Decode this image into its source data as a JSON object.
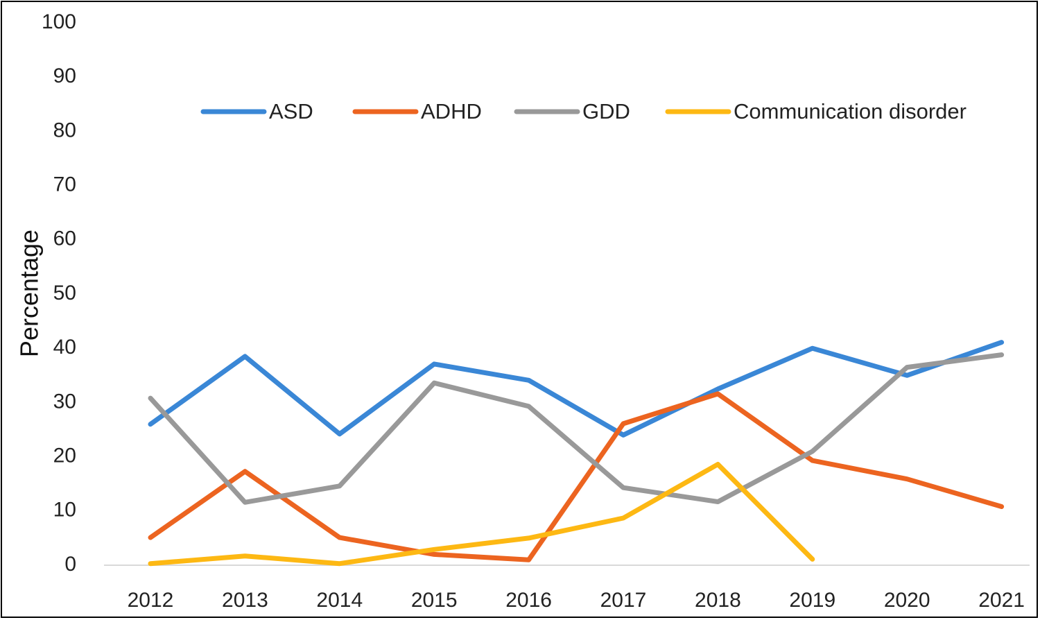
{
  "chart_data": {
    "type": "line",
    "title": "",
    "xlabel": "",
    "ylabel": "Percentage",
    "ylim": [
      0,
      100
    ],
    "yticks": [
      "0",
      "10",
      "20",
      "30",
      "40",
      "50",
      "60",
      "70",
      "80",
      "90",
      "100"
    ],
    "categories": [
      "2012",
      "2013",
      "2014",
      "2015",
      "2016",
      "2017",
      "2018",
      "2019",
      "2020",
      "2021"
    ],
    "grid": false,
    "legend_position": "top",
    "series": [
      {
        "name": "ASD",
        "color": "#3A87D6",
        "values": [
          26.0,
          38.5,
          24.2,
          37.1,
          34.1,
          24.0,
          32.5,
          40.0,
          35.0,
          41.1
        ]
      },
      {
        "name": "ADHD",
        "color": "#EC6420",
        "values": [
          5.1,
          17.3,
          5.1,
          2.0,
          1.0,
          26.1,
          31.6,
          19.3,
          15.9,
          10.8
        ]
      },
      {
        "name": "GDD",
        "color": "#999999",
        "values": [
          30.8,
          11.6,
          14.6,
          33.6,
          29.3,
          14.3,
          11.7,
          21.0,
          36.5,
          38.8
        ]
      },
      {
        "name": "Communication disorder",
        "color": "#FDB813",
        "values": [
          0.3,
          1.7,
          0.3,
          2.9,
          5.0,
          8.7,
          18.6,
          1.1,
          null,
          null
        ]
      }
    ]
  }
}
